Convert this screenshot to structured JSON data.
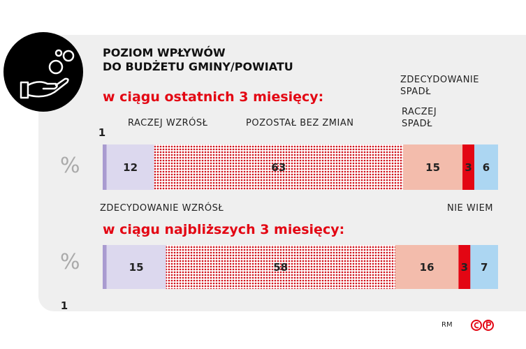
{
  "chart_data": {
    "type": "bar",
    "orientation": "horizontal",
    "stacked": true,
    "title": "POZIOM WPŁYWÓW\nDO BUDŻETU GMINY/POWIATU",
    "categories": [
      "w ciągu ostatnich 3 miesięcy:",
      "w ciągu najbliższych 3 miesięcy:"
    ],
    "unit": "%",
    "xlim": [
      0,
      100
    ],
    "series": [
      {
        "name": "ZDECYDOWANIE WZRÓSŁ",
        "color": "#a99bd0",
        "values": [
          1,
          1
        ]
      },
      {
        "name": "RACZEJ WZRÓSŁ",
        "color": "#dcd8ee",
        "values": [
          12,
          15
        ]
      },
      {
        "name": "POZOSTAŁ BEZ ZMIAN",
        "color": "dotted-red",
        "values": [
          63,
          58
        ]
      },
      {
        "name": "RACZEJ SPADŁ",
        "color": "#f3bcac",
        "values": [
          15,
          16
        ]
      },
      {
        "name": "ZDECYDOWANIE SPADŁ",
        "color": "#e30613",
        "values": [
          3,
          3
        ]
      },
      {
        "name": "NIE WIEM",
        "color": "#acd6f2",
        "values": [
          6,
          7
        ]
      }
    ],
    "credit": "RM"
  }
}
